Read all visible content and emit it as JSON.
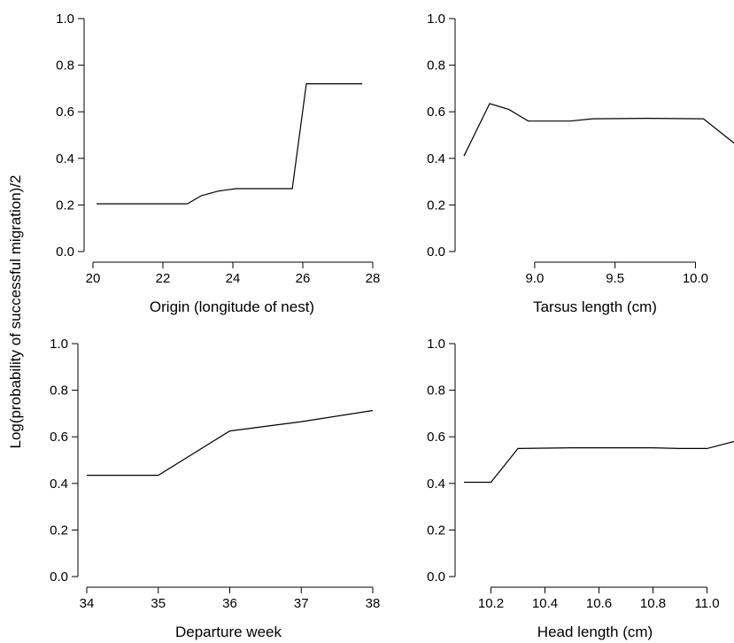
{
  "y_axis_shared_label": "Log(probability of successful migration)/2",
  "chart_data": [
    {
      "type": "line",
      "title": "",
      "xlabel": "Origin (longitude of nest)",
      "ylabel": "Log(probability of successful migration)/2",
      "xlim": [
        20,
        28
      ],
      "ylim": [
        0,
        1
      ],
      "x_ticks": [
        20,
        22,
        24,
        26,
        28
      ],
      "x_tick_labels": [
        "20",
        "22",
        "24",
        "26",
        "28"
      ],
      "y_ticks": [
        0,
        0.2,
        0.4,
        0.6,
        0.8,
        1.0
      ],
      "y_tick_labels": [
        "0.0",
        "0.2",
        "0.4",
        "0.6",
        "0.8",
        "1.0"
      ],
      "grid": false,
      "series": [
        {
          "x": [
            20.1,
            22.6,
            22.7,
            23.1,
            23.6,
            24.1,
            25.6,
            25.7,
            26.1,
            27.7
          ],
          "y": [
            0.205,
            0.205,
            0.205,
            0.24,
            0.26,
            0.27,
            0.27,
            0.27,
            0.72,
            0.72
          ]
        }
      ]
    },
    {
      "type": "line",
      "title": "",
      "xlabel": "Tarsus length (cm)",
      "ylabel": "",
      "xlim": [
        8.56,
        10.24
      ],
      "ylim": [
        0,
        1
      ],
      "x_ticks": [
        9.0,
        9.5,
        10.0
      ],
      "x_tick_labels": [
        "9.0",
        "9.5",
        "10.0"
      ],
      "y_ticks": [
        0,
        0.2,
        0.4,
        0.6,
        0.8,
        1.0
      ],
      "y_tick_labels": [
        "0.0",
        "0.2",
        "0.4",
        "0.6",
        "0.8",
        "1.0"
      ],
      "grid": false,
      "series": [
        {
          "x": [
            8.56,
            8.72,
            8.84,
            8.96,
            9.06,
            9.22,
            9.36,
            9.7,
            10.05,
            10.25
          ],
          "y": [
            0.41,
            0.635,
            0.61,
            0.56,
            0.56,
            0.56,
            0.57,
            0.572,
            0.57,
            0.46
          ]
        }
      ]
    },
    {
      "type": "line",
      "title": "",
      "xlabel": "Departure week",
      "ylabel": "",
      "xlim": [
        34,
        38
      ],
      "ylim": [
        0,
        1
      ],
      "x_ticks": [
        34,
        35,
        36,
        37,
        38
      ],
      "x_tick_labels": [
        "34",
        "35",
        "36",
        "37",
        "38"
      ],
      "y_ticks": [
        0,
        0.2,
        0.4,
        0.6,
        0.8,
        1.0
      ],
      "y_tick_labels": [
        "0.0",
        "0.2",
        "0.4",
        "0.6",
        "0.8",
        "1.0"
      ],
      "grid": false,
      "series": [
        {
          "x": [
            34,
            35,
            36,
            37,
            38
          ],
          "y": [
            0.435,
            0.435,
            0.625,
            0.665,
            0.713
          ]
        }
      ]
    },
    {
      "type": "line",
      "title": "",
      "xlabel": "Head length (cm)",
      "ylabel": "",
      "xlim": [
        10.1,
        11.1
      ],
      "ylim": [
        0,
        1
      ],
      "x_ticks": [
        10.2,
        10.4,
        10.6,
        10.8,
        11.0
      ],
      "x_tick_labels": [
        "10.2",
        "10.4",
        "10.6",
        "10.8",
        "11.0"
      ],
      "y_ticks": [
        0,
        0.2,
        0.4,
        0.6,
        0.8,
        1.0
      ],
      "y_tick_labels": [
        "0.0",
        "0.2",
        "0.4",
        "0.6",
        "0.8",
        "1.0"
      ],
      "grid": false,
      "series": [
        {
          "x": [
            10.1,
            10.2,
            10.3,
            10.5,
            10.7,
            10.8,
            10.9,
            11.0,
            11.1
          ],
          "y": [
            0.405,
            0.405,
            0.55,
            0.553,
            0.553,
            0.553,
            0.55,
            0.55,
            0.58
          ]
        }
      ]
    }
  ]
}
